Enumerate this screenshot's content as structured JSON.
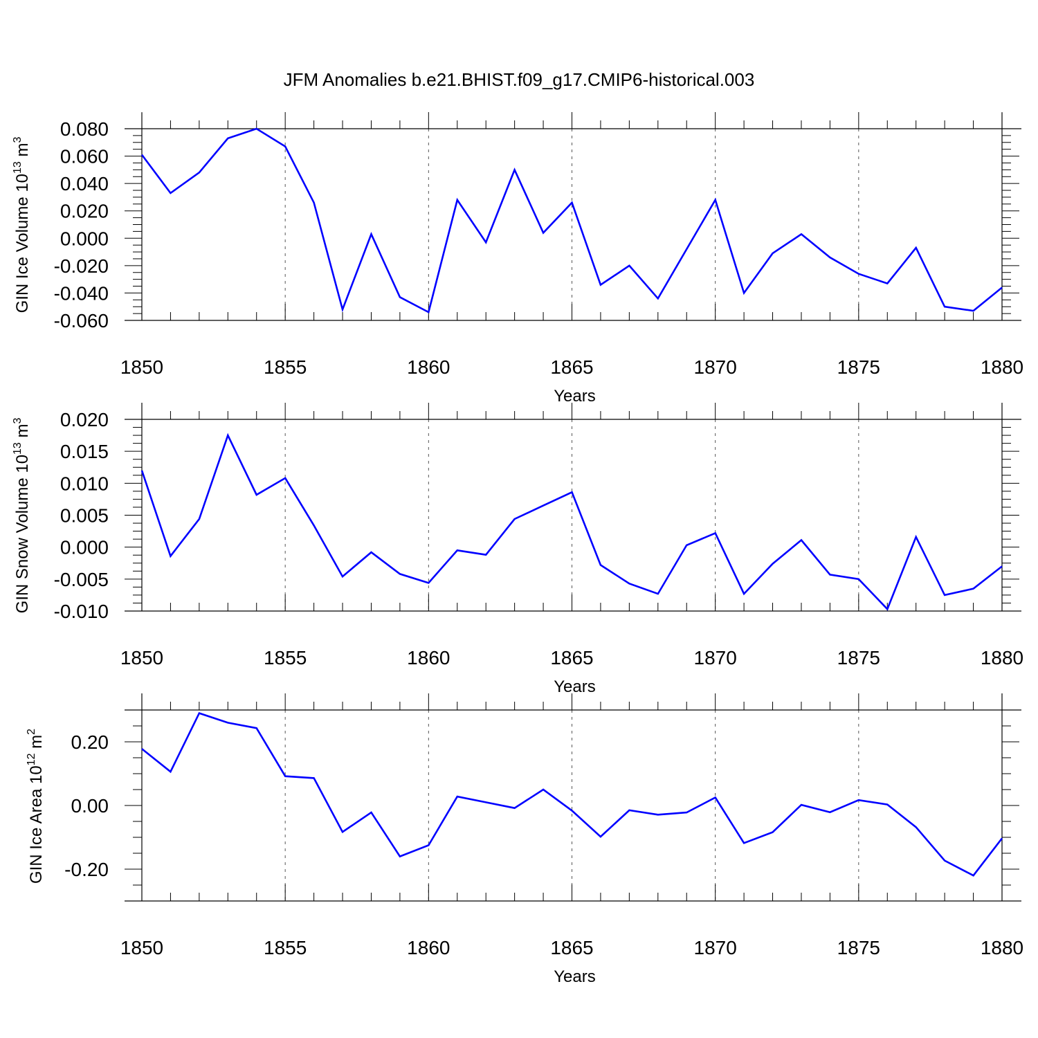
{
  "title": "JFM Anomalies b.e21.BHIST.f09_g17.CMIP6-historical.003",
  "colors": {
    "line": "#0000ff",
    "axis": "#000000",
    "grid": "#555555"
  },
  "chart_data": [
    {
      "type": "line",
      "ylabel_main": "GIN Ice Volume 10",
      "ylabel_exp": "13",
      "ylabel_unit": " m",
      "ylabel_unit_exp": "3",
      "xlabel": "Years",
      "xlim": [
        1850,
        1880
      ],
      "ylim": [
        -0.06,
        0.08
      ],
      "xticks": [
        "1850",
        "1855",
        "1860",
        "1865",
        "1870",
        "1875",
        "1880"
      ],
      "yticks": [
        "-0.060",
        "-0.040",
        "-0.020",
        "0.000",
        "0.020",
        "0.040",
        "0.060",
        "0.080"
      ],
      "ytick_values": [
        -0.06,
        -0.04,
        -0.02,
        0.0,
        0.02,
        0.04,
        0.06,
        0.08
      ],
      "x": [
        1850,
        1851,
        1852,
        1853,
        1854,
        1855,
        1856,
        1857,
        1858,
        1859,
        1860,
        1861,
        1862,
        1863,
        1864,
        1865,
        1866,
        1867,
        1868,
        1869,
        1870,
        1871,
        1872,
        1873,
        1874,
        1875,
        1876,
        1877,
        1878,
        1879,
        1880
      ],
      "values": [
        0.061,
        0.033,
        0.048,
        0.073,
        0.08,
        0.067,
        0.026,
        -0.052,
        0.003,
        -0.043,
        -0.054,
        0.028,
        -0.003,
        0.05,
        0.004,
        0.026,
        -0.034,
        -0.02,
        -0.044,
        -0.008,
        0.028,
        -0.04,
        -0.011,
        0.003,
        -0.014,
        -0.026,
        -0.033,
        -0.007,
        -0.05,
        -0.053,
        -0.036
      ]
    },
    {
      "type": "line",
      "ylabel_main": "GIN Snow Volume 10",
      "ylabel_exp": "13",
      "ylabel_unit": " m",
      "ylabel_unit_exp": "3",
      "xlabel": "Years",
      "xlim": [
        1850,
        1880
      ],
      "ylim": [
        -0.01,
        0.02
      ],
      "xticks": [
        "1850",
        "1855",
        "1860",
        "1865",
        "1870",
        "1875",
        "1880"
      ],
      "yticks": [
        "-0.010",
        "-0.005",
        "0.000",
        "0.005",
        "0.010",
        "0.015",
        "0.020"
      ],
      "ytick_values": [
        -0.01,
        -0.005,
        0.0,
        0.005,
        0.01,
        0.015,
        0.02
      ],
      "x": [
        1850,
        1851,
        1852,
        1853,
        1854,
        1855,
        1856,
        1857,
        1858,
        1859,
        1860,
        1861,
        1862,
        1863,
        1864,
        1865,
        1866,
        1867,
        1868,
        1869,
        1870,
        1871,
        1872,
        1873,
        1874,
        1875,
        1876,
        1877,
        1878,
        1879,
        1880
      ],
      "values": [
        0.012,
        -0.0014,
        0.0044,
        0.0175,
        0.0082,
        0.0108,
        0.0034,
        -0.0046,
        -0.0008,
        -0.0042,
        -0.0056,
        -0.0005,
        -0.0012,
        0.0044,
        0.0065,
        0.0086,
        -0.0028,
        -0.0057,
        -0.0073,
        0.0003,
        0.0022,
        -0.0073,
        -0.0026,
        0.0011,
        -0.0043,
        -0.005,
        -0.0097,
        0.0016,
        -0.0075,
        -0.0065,
        -0.003
      ]
    },
    {
      "type": "line",
      "ylabel_main": "GIN Ice Area 10",
      "ylabel_exp": "12",
      "ylabel_unit": " m",
      "ylabel_unit_exp": "2",
      "xlabel": "Years",
      "xlim": [
        1850,
        1880
      ],
      "ylim": [
        -0.3,
        0.3
      ],
      "xticks": [
        "1850",
        "1855",
        "1860",
        "1865",
        "1870",
        "1875",
        "1880"
      ],
      "yticks": [
        "-0.20",
        "0.00",
        "0.20"
      ],
      "ytick_values": [
        -0.2,
        0.0,
        0.2
      ],
      "x": [
        1850,
        1851,
        1852,
        1853,
        1854,
        1855,
        1856,
        1857,
        1858,
        1859,
        1860,
        1861,
        1862,
        1863,
        1864,
        1865,
        1866,
        1867,
        1868,
        1869,
        1870,
        1871,
        1872,
        1873,
        1874,
        1875,
        1876,
        1877,
        1878,
        1879,
        1880
      ],
      "values": [
        0.178,
        0.106,
        0.29,
        0.26,
        0.243,
        0.092,
        0.086,
        -0.083,
        -0.022,
        -0.16,
        -0.125,
        0.028,
        0.01,
        -0.008,
        0.05,
        -0.016,
        -0.098,
        -0.015,
        -0.029,
        -0.022,
        0.025,
        -0.118,
        -0.084,
        0.002,
        -0.021,
        0.017,
        0.003,
        -0.068,
        -0.173,
        -0.22,
        -0.103
      ]
    }
  ]
}
